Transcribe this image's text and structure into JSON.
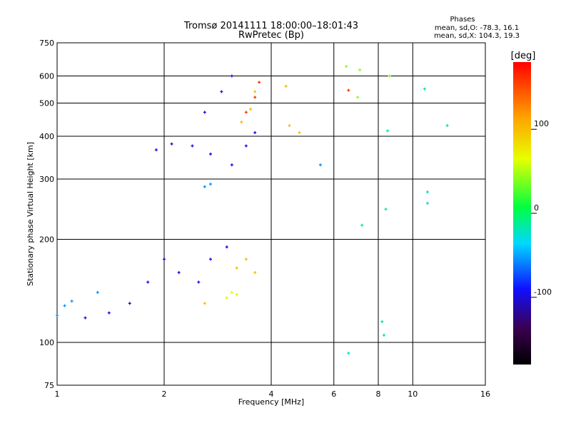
{
  "chart_data": {
    "type": "scatter",
    "title": "Tromsø 20141111 18:00:00–18:01:43",
    "subtitle": "RwPretec (Bp)",
    "stats": {
      "heading": "Phases",
      "line_o": "mean, sd,O: -78.3, 16.1",
      "line_x": "mean, sd,X: 104.3, 19.3"
    },
    "xlabel": "Frequency [MHz]",
    "ylabel": "Stationary phase Virtual Height [km]",
    "x_scale": "log",
    "y_scale": "log",
    "xlim": [
      1,
      16
    ],
    "ylim": [
      75,
      750
    ],
    "x_ticks": [
      1,
      2,
      4,
      6,
      8,
      10,
      16
    ],
    "x_tick_labels": [
      "1",
      "2",
      "4",
      "6",
      "8",
      "10",
      "16"
    ],
    "y_ticks": [
      75,
      100,
      200,
      300,
      400,
      500,
      600,
      750
    ],
    "y_tick_labels": [
      "75",
      "100",
      "200",
      "300",
      "400",
      "500",
      "600",
      "750"
    ],
    "grid": true,
    "colorbar": {
      "label": "[deg]",
      "range": [
        -180,
        180
      ],
      "ticks": [
        100,
        0,
        -100
      ],
      "tick_labels": [
        "100",
        "0",
        "-100"
      ]
    },
    "series": [
      {
        "points": [
          [
            1.2,
            118
          ],
          [
            1.4,
            122
          ],
          [
            1.6,
            130
          ],
          [
            1.8,
            150
          ],
          [
            2.0,
            175
          ],
          [
            2.2,
            160
          ],
          [
            2.5,
            150
          ],
          [
            2.7,
            175
          ],
          [
            3.0,
            190
          ],
          [
            1.9,
            365
          ],
          [
            2.1,
            380
          ],
          [
            2.4,
            375
          ],
          [
            2.7,
            355
          ],
          [
            3.1,
            330
          ],
          [
            3.4,
            375
          ],
          [
            3.6,
            410
          ],
          [
            2.6,
            470
          ],
          [
            2.9,
            540
          ],
          [
            3.1,
            600
          ]
        ],
        "phase": -95
      },
      {
        "points": [
          [
            1.0,
            120
          ],
          [
            1.05,
            128
          ],
          [
            1.1,
            132
          ],
          [
            1.3,
            140
          ],
          [
            2.6,
            285
          ],
          [
            2.7,
            290
          ],
          [
            5.5,
            330
          ]
        ],
        "phase": -55
      },
      {
        "points": [
          [
            2.6,
            130
          ],
          [
            3.2,
            165
          ],
          [
            3.4,
            175
          ],
          [
            3.6,
            160
          ],
          [
            3.3,
            440
          ],
          [
            3.5,
            480
          ],
          [
            3.6,
            540
          ],
          [
            4.5,
            430
          ],
          [
            4.8,
            410
          ],
          [
            4.4,
            560
          ]
        ],
        "phase": 100
      },
      {
        "points": [
          [
            3.0,
            135
          ],
          [
            3.1,
            140
          ],
          [
            3.2,
            138
          ]
        ],
        "phase": 60
      },
      {
        "points": [
          [
            3.4,
            470
          ],
          [
            3.6,
            520
          ],
          [
            3.7,
            575
          ],
          [
            6.6,
            545
          ]
        ],
        "phase": 160
      },
      {
        "points": [
          [
            6.5,
            640
          ],
          [
            7.1,
            625
          ],
          [
            7.0,
            520
          ],
          [
            8.6,
            600
          ]
        ],
        "phase": 40
      },
      {
        "points": [
          [
            8.2,
            115
          ],
          [
            8.4,
            245
          ],
          [
            8.5,
            415
          ],
          [
            11.0,
            275
          ],
          [
            11.0,
            255
          ],
          [
            6.6,
            93
          ],
          [
            8.3,
            105
          ],
          [
            7.2,
            220
          ],
          [
            12.5,
            430
          ],
          [
            10.8,
            550
          ]
        ],
        "phase": -20
      }
    ]
  }
}
